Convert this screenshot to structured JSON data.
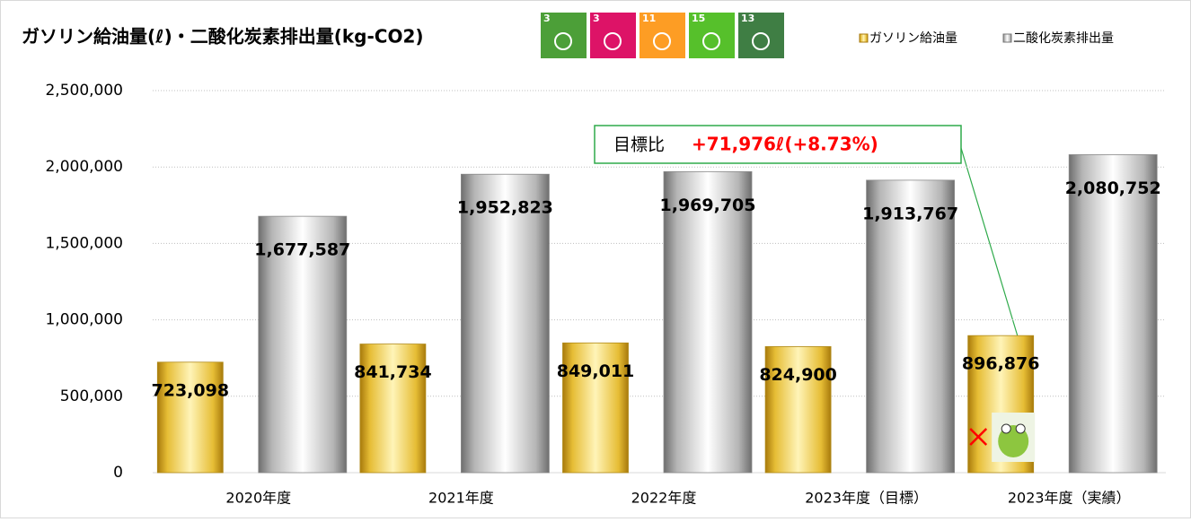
{
  "chart_data": {
    "type": "bar",
    "title": "ガソリン給油量(ℓ)・二酸化炭素排出量(kg-CO2)",
    "categories": [
      "2020年度",
      "2021年度",
      "2022年度",
      "2023年度（目標）",
      "2023年度（実績）"
    ],
    "series": [
      {
        "name": "ガソリン給油量",
        "color": "#e8c33a",
        "values": [
          723098,
          841734,
          849011,
          824900,
          896876
        ],
        "value_labels": [
          "723,098",
          "841,734",
          "849,011",
          "824,900",
          "896,876"
        ]
      },
      {
        "name": "二酸化炭素排出量",
        "color": "#b0b0b0",
        "values": [
          1677587,
          1952823,
          1969705,
          1913767,
          2080752
        ],
        "value_labels": [
          "1,677,587",
          "1,952,823",
          "1,969,705",
          "1,913,767",
          "2,080,752"
        ]
      }
    ],
    "ylim": [
      0,
      2500000
    ],
    "yticks": [
      0,
      {
        "value": 500000,
        "label": "500,000"
      },
      {
        "value": 1000000,
        "label": "1,000,000"
      },
      {
        "value": 1500000,
        "label": "1,500,000"
      },
      {
        "value": 2000000,
        "label": "2,000,000"
      },
      {
        "value": 2500000,
        "label": "2,500,000"
      }
    ],
    "grid": true,
    "legend": "top-right",
    "annotation": {
      "label": "目標比",
      "value": "+71,976ℓ(+8.73%)"
    },
    "sdg_icons": [
      "3",
      "3",
      "11",
      "15",
      "13"
    ]
  }
}
